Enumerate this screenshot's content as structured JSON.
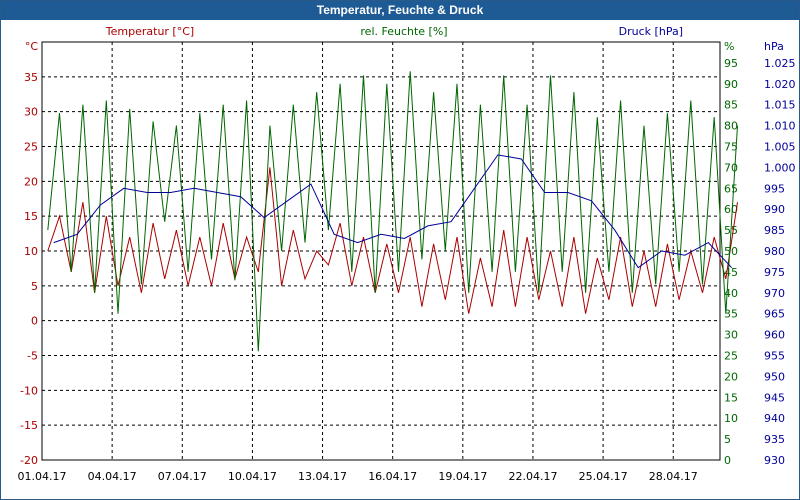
{
  "window": {
    "title": "Temperatur, Feuchte & Druck"
  },
  "colors": {
    "temperature": "#aa0000",
    "humidity": "#006600",
    "pressure": "#000099",
    "titlebar": "#1e5b94",
    "grid": "#000000"
  },
  "chart_data": {
    "type": "line",
    "title": "Temperatur, Feuchte & Druck",
    "grid": true,
    "x": {
      "ticks": [
        "01.04.17",
        "04.04.17",
        "07.04.17",
        "10.04.17",
        "13.04.17",
        "16.04.17",
        "19.04.17",
        "22.04.17",
        "25.04.17",
        "28.04.17"
      ],
      "range": [
        "01.04.17",
        "30.04.17"
      ]
    },
    "axes": {
      "temperature": {
        "label": "Temperatur [°C]",
        "unit": "°C",
        "ylim": [
          -20,
          40
        ],
        "ticks": [
          "40",
          "35",
          "30",
          "25",
          "20",
          "15",
          "10",
          "5",
          "0",
          "-5",
          "-10",
          "-15",
          "-20"
        ]
      },
      "humidity": {
        "label": "rel. Feuchte [%]",
        "unit": "%",
        "ylim": [
          0,
          100
        ],
        "ticks": [
          "95",
          "90",
          "85",
          "80",
          "75",
          "70",
          "65",
          "60",
          "55",
          "50",
          "45",
          "40",
          "35",
          "30",
          "25",
          "20",
          "15",
          "10",
          "5",
          "0"
        ]
      },
      "pressure": {
        "label": "Druck [hPa]",
        "unit": "hPa",
        "ylim": [
          930,
          1030
        ],
        "ticks": [
          "1.025",
          "1.020",
          "1.015",
          "1.010",
          "1.005",
          "1.000",
          "995",
          "990",
          "985",
          "980",
          "975",
          "970",
          "965",
          "960",
          "955",
          "950",
          "945",
          "940",
          "935",
          "930"
        ]
      }
    },
    "series": [
      {
        "name": "Temperatur [°C]",
        "axis": "temperature",
        "x": [
          "01.04.17",
          "01.04.17",
          "02.04.17",
          "02.04.17",
          "03.04.17",
          "03.04.17",
          "04.04.17",
          "04.04.17",
          "05.04.17",
          "05.04.17",
          "06.04.17",
          "06.04.17",
          "07.04.17",
          "07.04.17",
          "08.04.17",
          "08.04.17",
          "09.04.17",
          "09.04.17",
          "10.04.17",
          "10.04.17",
          "11.04.17",
          "11.04.17",
          "12.04.17",
          "12.04.17",
          "13.04.17",
          "13.04.17",
          "14.04.17",
          "14.04.17",
          "15.04.17",
          "15.04.17",
          "16.04.17",
          "16.04.17",
          "17.04.17",
          "17.04.17",
          "18.04.17",
          "18.04.17",
          "19.04.17",
          "19.04.17",
          "20.04.17",
          "20.04.17",
          "21.04.17",
          "21.04.17",
          "22.04.17",
          "22.04.17",
          "23.04.17",
          "23.04.17",
          "24.04.17",
          "24.04.17",
          "25.04.17",
          "25.04.17",
          "26.04.17",
          "26.04.17",
          "27.04.17",
          "27.04.17",
          "28.04.17",
          "28.04.17",
          "29.04.17",
          "29.04.17",
          "30.04.17",
          "30.04.17"
        ],
        "values": [
          10,
          15,
          7,
          17,
          4,
          15,
          5,
          12,
          4,
          14,
          6,
          13,
          5,
          12,
          5,
          14,
          6,
          12,
          7,
          22,
          5,
          13,
          6,
          10,
          8,
          14,
          5,
          12,
          4,
          11,
          4,
          12,
          2,
          11,
          3,
          12,
          1,
          9,
          2,
          13,
          2,
          12,
          3,
          10,
          2,
          12,
          1,
          9,
          3,
          12,
          2,
          10,
          2,
          11,
          3,
          10,
          4,
          12,
          6,
          17
        ]
      },
      {
        "name": "rel. Feuchte [%]",
        "axis": "humidity",
        "x": [
          "01.04.17",
          "01.04.17",
          "02.04.17",
          "02.04.17",
          "03.04.17",
          "03.04.17",
          "04.04.17",
          "04.04.17",
          "05.04.17",
          "05.04.17",
          "06.04.17",
          "06.04.17",
          "07.04.17",
          "07.04.17",
          "08.04.17",
          "08.04.17",
          "09.04.17",
          "09.04.17",
          "10.04.17",
          "10.04.17",
          "11.04.17",
          "11.04.17",
          "12.04.17",
          "12.04.17",
          "13.04.17",
          "13.04.17",
          "14.04.17",
          "14.04.17",
          "15.04.17",
          "15.04.17",
          "16.04.17",
          "16.04.17",
          "17.04.17",
          "17.04.17",
          "18.04.17",
          "18.04.17",
          "19.04.17",
          "19.04.17",
          "20.04.17",
          "20.04.17",
          "21.04.17",
          "21.04.17",
          "22.04.17",
          "22.04.17",
          "23.04.17",
          "23.04.17",
          "24.04.17",
          "24.04.17",
          "25.04.17",
          "25.04.17",
          "26.04.17",
          "26.04.17",
          "27.04.17",
          "27.04.17",
          "28.04.17",
          "28.04.17",
          "29.04.17",
          "29.04.17",
          "30.04.17",
          "30.04.17"
        ],
        "values": [
          55,
          83,
          45,
          85,
          40,
          86,
          35,
          84,
          42,
          81,
          57,
          80,
          45,
          83,
          48,
          85,
          43,
          86,
          26,
          80,
          50,
          85,
          52,
          88,
          55,
          90,
          45,
          92,
          40,
          90,
          45,
          93,
          48,
          88,
          50,
          90,
          40,
          85,
          45,
          92,
          45,
          85,
          40,
          92,
          45,
          88,
          40,
          82,
          45,
          86,
          40,
          80,
          42,
          83,
          45,
          86,
          42,
          82,
          35,
          80
        ]
      },
      {
        "name": "Druck [hPa]",
        "axis": "pressure",
        "x": [
          "01.04.17",
          "02.04.17",
          "03.04.17",
          "04.04.17",
          "05.04.17",
          "06.04.17",
          "07.04.17",
          "08.04.17",
          "09.04.17",
          "10.04.17",
          "11.04.17",
          "12.04.17",
          "13.04.17",
          "14.04.17",
          "15.04.17",
          "16.04.17",
          "17.04.17",
          "18.04.17",
          "19.04.17",
          "20.04.17",
          "21.04.17",
          "22.04.17",
          "23.04.17",
          "24.04.17",
          "25.04.17",
          "26.04.17",
          "27.04.17",
          "28.04.17",
          "29.04.17",
          "30.04.17"
        ],
        "values": [
          982,
          984,
          991,
          995,
          994,
          994,
          995,
          994,
          993,
          988,
          992,
          996,
          984,
          982,
          984,
          983,
          986,
          987,
          995,
          1003,
          1002,
          994,
          994,
          992,
          985,
          976,
          980,
          979,
          982,
          976
        ]
      }
    ]
  }
}
